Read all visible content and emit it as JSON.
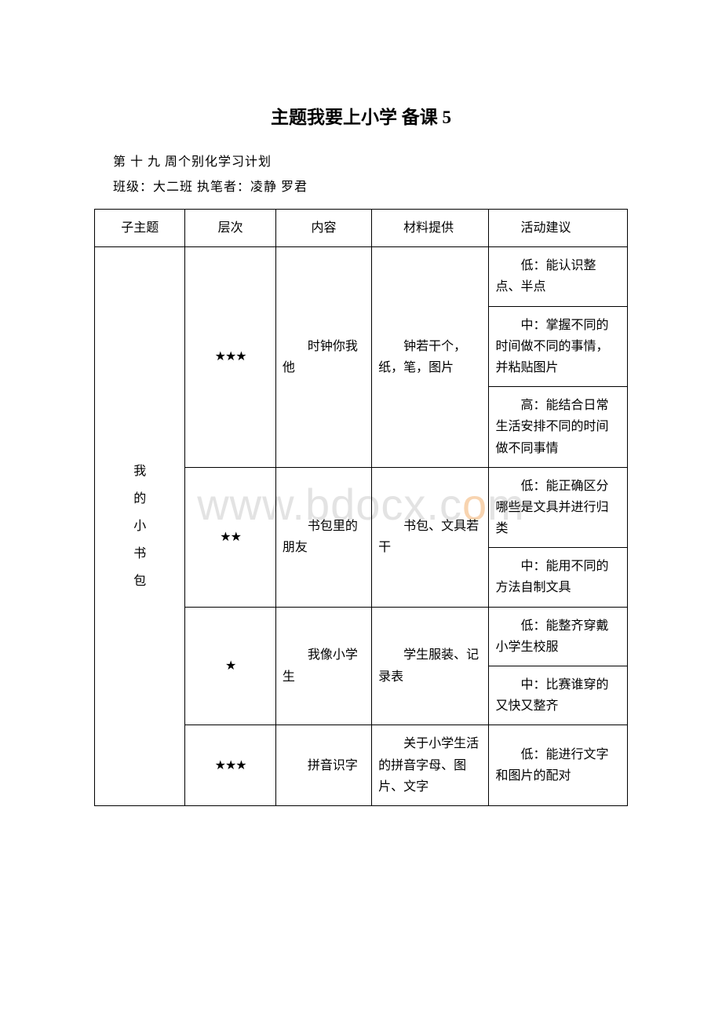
{
  "title": "主题我要上小学 备课 5",
  "subtitle": "第 十 九 周个别化学习计划",
  "info_line": "班级：大二班 执笔者：凌静 罗君",
  "watermark_text": "www.bdocx.com",
  "headers": {
    "col1": "子主题",
    "col2": "层次",
    "col3": "内容",
    "col4": "材料提供",
    "col5": "活动建议"
  },
  "subtheme": {
    "c1": "我",
    "c2": "的",
    "c3": "小",
    "c4": "书",
    "c5": "包"
  },
  "stars": {
    "three": "★★★",
    "two": "★★",
    "one": "★"
  },
  "rows": [
    {
      "content": "时钟你我他",
      "material": "钟若干个，纸，笔，图片",
      "suggestions": {
        "low": "低：能认识整点、半点",
        "mid": "中：掌握不同的时间做不同的事情，并粘贴图片",
        "high": "高：能结合日常生活安排不同的时间做不同事情"
      }
    },
    {
      "content": "书包里的朋友",
      "material": "书包、文具若干",
      "suggestions": {
        "low": "低：能正确区分哪些是文具并进行归类",
        "mid": "中：能用不同的方法自制文具"
      }
    },
    {
      "content": "我像小学生",
      "material": "学生服装、记录表",
      "suggestions": {
        "low": "低：能整齐穿戴小学生校服",
        "mid": "中：比赛谁穿的又快又整齐"
      }
    },
    {
      "content": "拼音识字",
      "material": "关于小学生活的拼音字母、图片、文字",
      "suggestions": {
        "low": "低：能进行文字和图片的配对"
      }
    }
  ]
}
